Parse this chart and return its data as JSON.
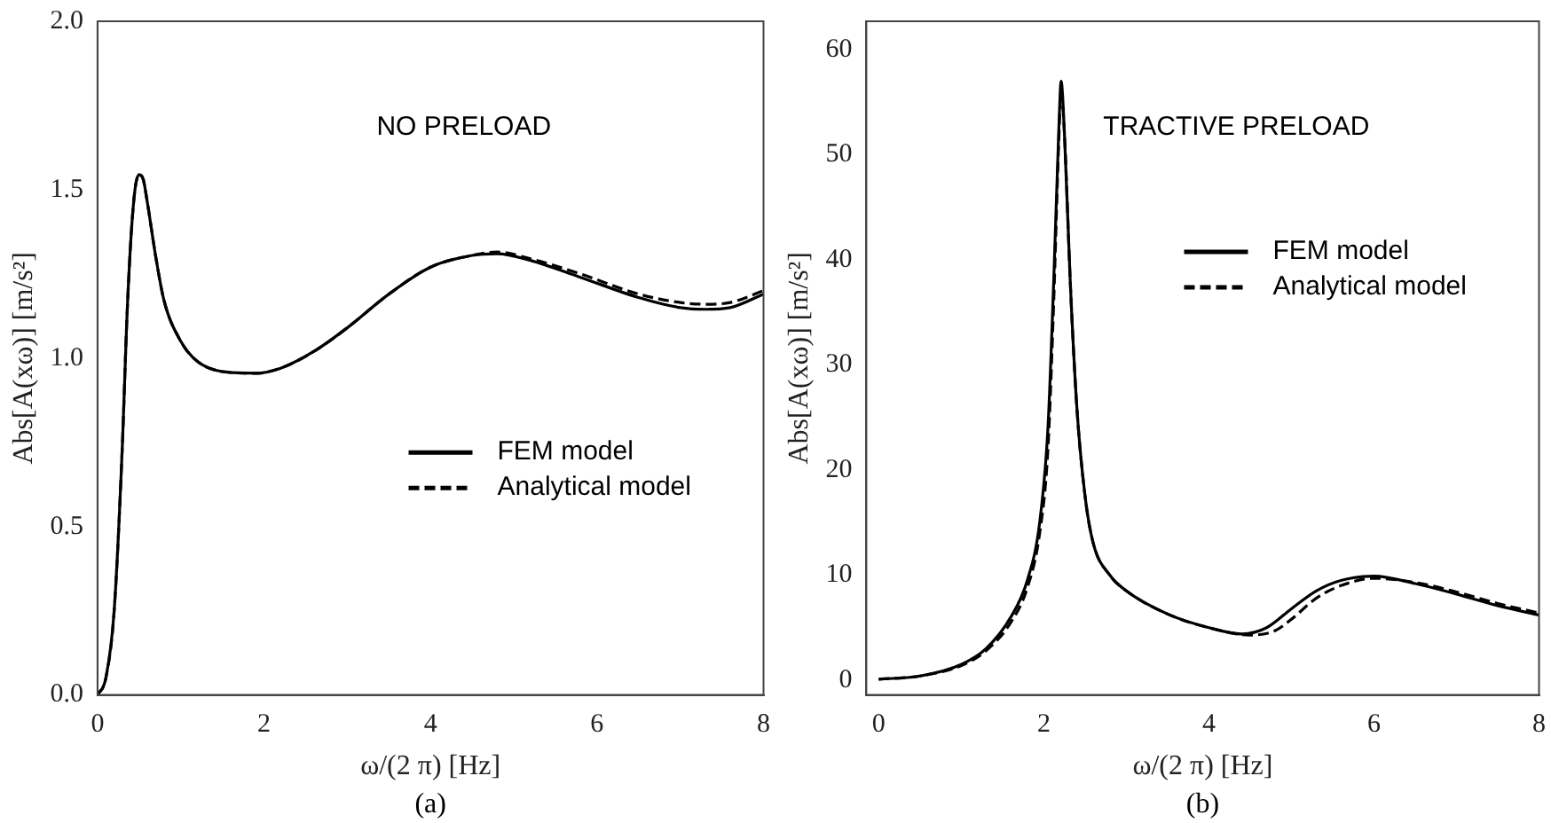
{
  "chart_data": [
    {
      "type": "line",
      "title": "NO PRELOAD",
      "xlabel": "ω/(2 π) [Hz]",
      "ylabel": "Abs[A(xω)] [m/s²]",
      "annotations": [
        "(a)"
      ],
      "xlim": [
        0,
        8
      ],
      "ylim": [
        0,
        2
      ],
      "xticks": [
        0,
        2,
        4,
        6,
        8
      ],
      "yticks": [
        {
          "value": 0,
          "label": "0.0"
        },
        {
          "value": 0.5,
          "label": "0.5"
        },
        {
          "value": 1,
          "label": "1.0"
        },
        {
          "value": 1.5,
          "label": "1.5"
        },
        {
          "value": 2,
          "label": "2.0"
        }
      ],
      "grid": false,
      "legend": "right",
      "marker": "none",
      "series": [
        {
          "name": "FEM model",
          "color": "#000000",
          "line_style": "solid",
          "x": [
            0,
            0.1,
            0.2,
            0.3,
            0.35,
            0.4,
            0.45,
            0.5,
            0.55,
            0.6,
            0.7,
            0.8,
            1.0,
            1.2,
            1.5,
            1.9,
            2.2,
            2.6,
            3.0,
            3.5,
            4.0,
            4.5,
            4.8,
            5.2,
            5.8,
            6.5,
            7.0,
            7.3,
            7.6,
            8.0
          ],
          "values": [
            0,
            0.05,
            0.25,
            0.75,
            1.1,
            1.35,
            1.5,
            1.545,
            1.53,
            1.46,
            1.3,
            1.17,
            1.05,
            0.99,
            0.96,
            0.955,
            0.97,
            1.02,
            1.09,
            1.19,
            1.27,
            1.305,
            1.31,
            1.29,
            1.24,
            1.18,
            1.15,
            1.145,
            1.15,
            1.19
          ]
        },
        {
          "name": "Analytical model",
          "color": "#000000",
          "line_style": "dashed",
          "x": [
            0,
            0.1,
            0.2,
            0.3,
            0.35,
            0.4,
            0.45,
            0.5,
            0.55,
            0.6,
            0.7,
            0.8,
            1.0,
            1.2,
            1.5,
            1.9,
            2.2,
            2.6,
            3.0,
            3.5,
            4.0,
            4.5,
            4.8,
            5.2,
            5.8,
            6.5,
            7.0,
            7.3,
            7.6,
            8.0
          ],
          "values": [
            0,
            0.05,
            0.25,
            0.75,
            1.1,
            1.35,
            1.5,
            1.545,
            1.53,
            1.46,
            1.3,
            1.17,
            1.05,
            0.99,
            0.96,
            0.955,
            0.97,
            1.02,
            1.09,
            1.19,
            1.27,
            1.305,
            1.315,
            1.295,
            1.25,
            1.19,
            1.165,
            1.16,
            1.165,
            1.2
          ]
        }
      ]
    },
    {
      "type": "line",
      "title": "TRACTIVE PRELOAD",
      "xlabel": "ω/(2 π) [Hz]",
      "ylabel": "Abs[A(xω)] [m/s²]",
      "annotations": [
        "(b)"
      ],
      "xlim": [
        -0.15,
        8
      ],
      "ylim": [
        -1.4,
        62.7
      ],
      "xticks": [
        0,
        2,
        4,
        6,
        8
      ],
      "yticks": [
        0,
        10,
        20,
        30,
        40,
        50,
        60
      ],
      "grid": false,
      "legend": "top right",
      "marker": "none",
      "series": [
        {
          "name": "FEM model",
          "color": "#000000",
          "line_style": "solid",
          "x": [
            0,
            0.5,
            1.0,
            1.3,
            1.6,
            1.8,
            1.95,
            2.05,
            2.12,
            2.18,
            2.21,
            2.25,
            2.32,
            2.4,
            2.5,
            2.6,
            2.8,
            3.0,
            3.5,
            4.0,
            4.4,
            4.7,
            5.0,
            5.3,
            5.6,
            6.0,
            6.5,
            7.0,
            7.5,
            8.0
          ],
          "values": [
            0.1,
            0.4,
            1.5,
            3,
            6,
            9.5,
            15,
            24,
            38,
            52,
            57,
            52,
            38,
            26,
            17.5,
            13,
            10,
            8.5,
            6.3,
            5,
            4.4,
            5,
            6.8,
            8.5,
            9.5,
            9.9,
            9.2,
            8.2,
            7.1,
            6.2
          ]
        },
        {
          "name": "Analytical model",
          "color": "#000000",
          "line_style": "dashed",
          "x": [
            0,
            0.5,
            1.0,
            1.3,
            1.6,
            1.8,
            1.95,
            2.05,
            2.12,
            2.18,
            2.21,
            2.25,
            2.32,
            2.4,
            2.5,
            2.6,
            2.8,
            3.0,
            3.5,
            4.0,
            4.5,
            4.8,
            5.0,
            5.3,
            5.6,
            6.0,
            6.5,
            7.0,
            7.5,
            8.0
          ],
          "values": [
            0.1,
            0.4,
            1.4,
            2.8,
            5.5,
            8.8,
            14,
            22,
            36,
            51,
            56,
            52,
            38,
            26,
            17.5,
            13,
            10,
            8.5,
            6.3,
            5,
            4.3,
            4.7,
            5.8,
            7.8,
            9,
            9.7,
            9.3,
            8.4,
            7.3,
            6.4
          ]
        }
      ]
    }
  ]
}
